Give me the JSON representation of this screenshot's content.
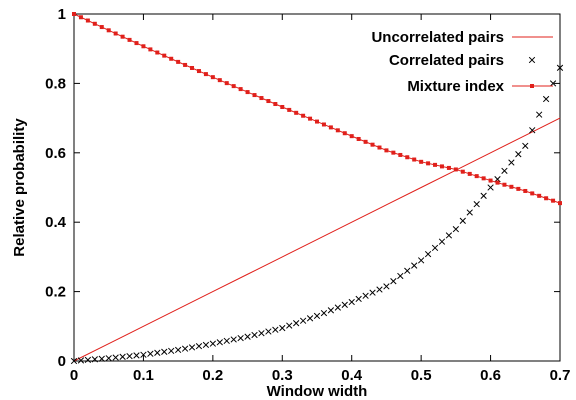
{
  "chart_data": {
    "type": "line",
    "xlabel": "Window width",
    "ylabel": "Relative probability",
    "xlim": [
      0,
      0.7
    ],
    "ylim": [
      0,
      1
    ],
    "x_ticks": [
      0,
      0.1,
      0.2,
      0.3,
      0.4,
      0.5,
      0.6,
      0.7
    ],
    "x_tick_labels": [
      "0",
      "0.1",
      "0.2",
      "0.3",
      "0.4",
      "0.5",
      "0.6",
      "0.7"
    ],
    "y_ticks": [
      0,
      0.2,
      0.4,
      0.6,
      0.8,
      1
    ],
    "y_tick_labels": [
      "0",
      "0.2",
      "0.4",
      "0.6",
      "0.8",
      "1"
    ],
    "grid": false,
    "legend_position": "top-right",
    "x": [
      0.0,
      0.05,
      0.1,
      0.15,
      0.2,
      0.25,
      0.3,
      0.35,
      0.4,
      0.45,
      0.5,
      0.55,
      0.6,
      0.65,
      0.7
    ],
    "series": [
      {
        "name": "Uncorrelated pairs",
        "style": "line",
        "color": "#e0201b",
        "values": [
          0.0,
          0.05,
          0.1,
          0.15,
          0.2,
          0.25,
          0.3,
          0.35,
          0.4,
          0.45,
          0.5,
          0.55,
          0.6,
          0.65,
          0.7
        ]
      },
      {
        "name": "Correlated pairs",
        "style": "cross",
        "color": "#000000",
        "values": [
          0.0,
          0.008,
          0.018,
          0.032,
          0.05,
          0.07,
          0.095,
          0.13,
          0.17,
          0.215,
          0.29,
          0.38,
          0.5,
          0.62,
          0.845
        ]
      },
      {
        "name": "Mixture index",
        "style": "line-square",
        "color": "#e0201b",
        "values": [
          1.0,
          0.953,
          0.907,
          0.862,
          0.818,
          0.775,
          0.732,
          0.69,
          0.648,
          0.607,
          0.574,
          0.552,
          0.52,
          0.49,
          0.455
        ]
      }
    ]
  }
}
